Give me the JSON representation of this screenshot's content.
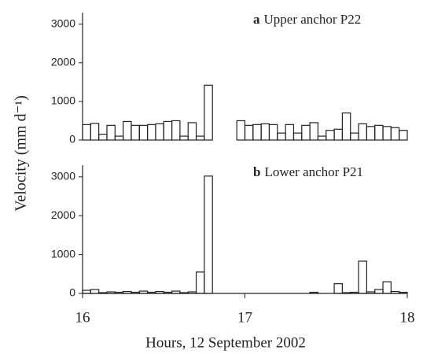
{
  "y_label": "Velocity (mm d⁻¹)",
  "chart_data": [
    {
      "type": "histogram",
      "panel_letter": "a",
      "title": "Upper anchor P22",
      "bins": [
        16,
        16.05,
        16.1,
        16.15,
        16.2,
        16.25,
        16.3,
        16.35,
        16.4,
        16.45,
        16.5,
        16.55,
        16.6,
        16.65,
        16.7,
        16.75,
        16.8,
        16.85,
        16.9,
        16.95,
        17,
        17.05,
        17.1,
        17.15,
        17.2,
        17.25,
        17.3,
        17.35,
        17.4,
        17.45,
        17.5,
        17.55,
        17.6,
        17.65,
        17.7,
        17.75,
        17.8,
        17.85,
        17.9,
        17.95,
        18
      ],
      "values": [
        400,
        430,
        150,
        380,
        100,
        480,
        380,
        380,
        400,
        420,
        480,
        500,
        100,
        450,
        100,
        1420,
        0,
        0,
        0,
        500,
        380,
        400,
        420,
        400,
        180,
        400,
        180,
        380,
        450,
        100,
        250,
        280,
        700,
        180,
        420,
        350,
        380,
        350,
        320,
        250
      ],
      "xlim": [
        16,
        18
      ],
      "ylim": [
        0,
        3300
      ],
      "yticks": [
        0,
        1000,
        2000,
        3000
      ],
      "color": "#222222"
    },
    {
      "type": "histogram",
      "panel_letter": "b",
      "title": "Lower anchor P21",
      "bins": [
        16,
        16.05,
        16.1,
        16.15,
        16.2,
        16.25,
        16.3,
        16.35,
        16.4,
        16.45,
        16.5,
        16.55,
        16.6,
        16.65,
        16.7,
        16.75,
        16.8,
        16.85,
        16.9,
        16.95,
        17,
        17.05,
        17.1,
        17.15,
        17.2,
        17.25,
        17.3,
        17.35,
        17.4,
        17.45,
        17.5,
        17.55,
        17.6,
        17.65,
        17.7,
        17.75,
        17.8,
        17.85,
        17.9,
        17.95,
        18
      ],
      "values": [
        80,
        100,
        20,
        40,
        30,
        50,
        30,
        60,
        30,
        50,
        30,
        60,
        20,
        40,
        550,
        3020,
        0,
        0,
        0,
        0,
        0,
        0,
        0,
        0,
        0,
        0,
        0,
        0,
        30,
        0,
        0,
        250,
        20,
        30,
        830,
        40,
        100,
        300,
        50,
        30
      ],
      "xlim": [
        16,
        18
      ],
      "ylim": [
        0,
        3300
      ],
      "yticks": [
        0,
        1000,
        2000,
        3000
      ],
      "xticks": [
        16,
        17,
        18
      ],
      "x_label": "Hours,  12  September 2002",
      "color": "#222222"
    }
  ]
}
